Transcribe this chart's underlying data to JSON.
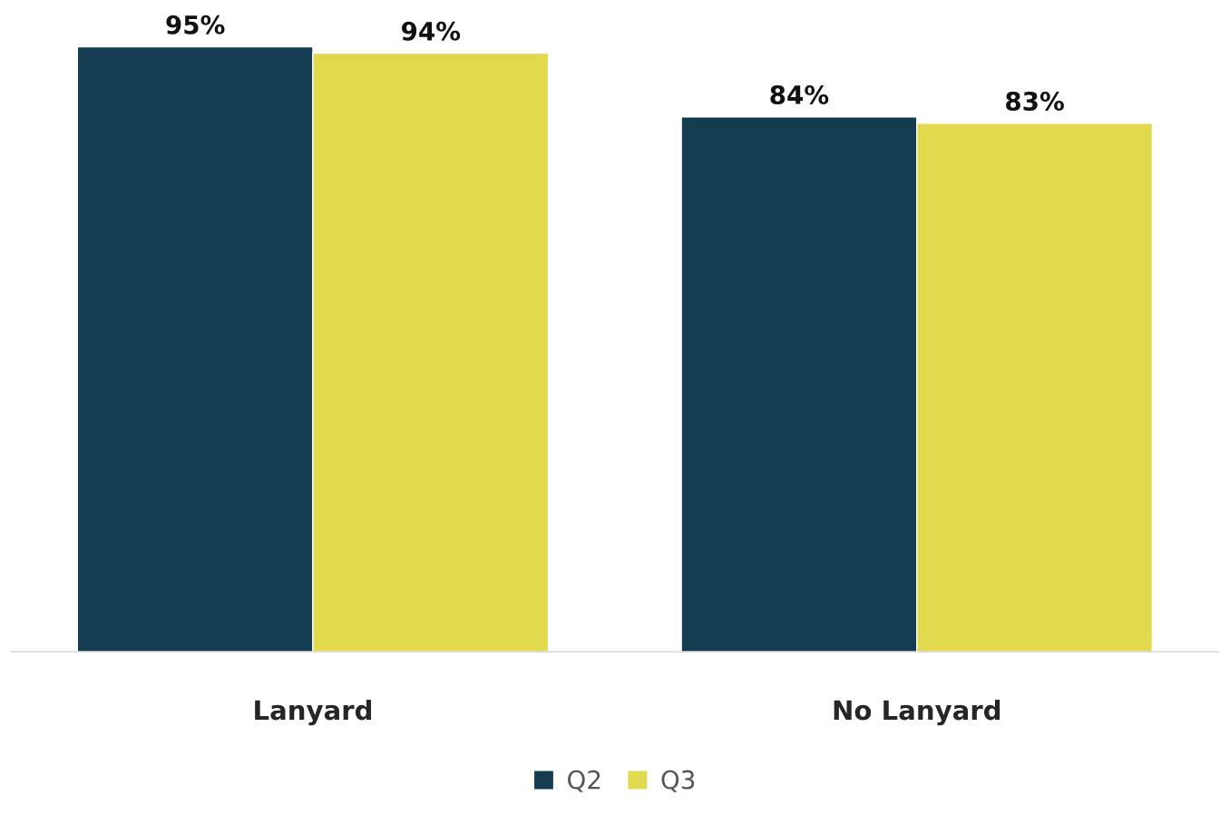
{
  "chart_data": {
    "type": "bar",
    "categories": [
      "Lanyard",
      "No Lanyard"
    ],
    "series": [
      {
        "name": "Q2",
        "color": "#133c50",
        "values": [
          95,
          84
        ],
        "value_labels": [
          "95%",
          "84%"
        ]
      },
      {
        "name": "Q3",
        "color": "#e1da4f",
        "values": [
          94,
          83
        ],
        "value_labels": [
          "94%",
          "83%"
        ]
      }
    ],
    "legend": "bottom",
    "grid": false
  }
}
